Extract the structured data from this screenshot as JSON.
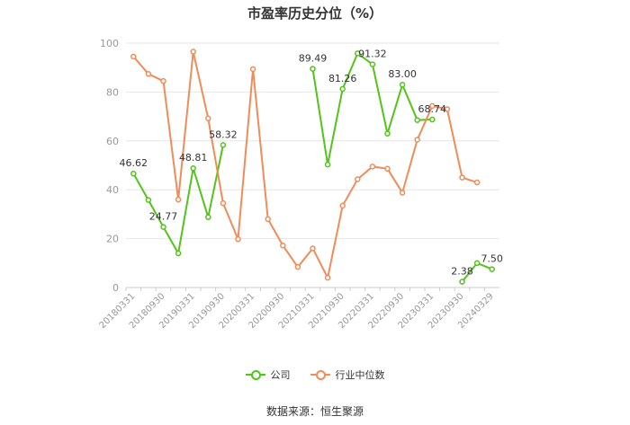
{
  "title": "市盈率历史分位（%）",
  "source": "数据来源：恒生聚源",
  "colors": {
    "company": "#52c41a",
    "industry": "#f08c5a",
    "grid": "#e6e6e6",
    "axis": "#999999"
  },
  "chart_data": {
    "type": "line",
    "ylim": [
      0,
      100
    ],
    "yticks": [
      0,
      20,
      40,
      60,
      80,
      100
    ],
    "grid": true,
    "legend_position": "bottom",
    "x_labels": [
      "20180331",
      "20180930",
      "20190331",
      "20190930",
      "20200331",
      "20200930",
      "20210331",
      "20210930",
      "20220331",
      "20220930",
      "20230331",
      "20230930",
      "20240329"
    ],
    "x": [
      "20180331",
      "20180630",
      "20180930",
      "20181231",
      "20190331",
      "20190630",
      "20190930",
      "20191231",
      "20200331",
      "20200630",
      "20200930",
      "20201231",
      "20210331",
      "20210630",
      "20210930",
      "20211231",
      "20220331",
      "20220630",
      "20220930",
      "20221231",
      "20230331",
      "20230630",
      "20230930",
      "20231231",
      "20240329"
    ],
    "series": [
      {
        "name": "公司",
        "values": [
          46.62,
          35.8,
          24.77,
          14.0,
          48.81,
          28.8,
          58.32,
          null,
          null,
          null,
          null,
          null,
          89.49,
          50.3,
          81.26,
          95.8,
          91.32,
          63.0,
          83.0,
          68.5,
          68.74,
          null,
          2.38,
          10.0,
          7.5
        ],
        "labels": [
          "46.62",
          null,
          "24.77",
          null,
          "48.81",
          null,
          "58.32",
          null,
          null,
          null,
          null,
          null,
          "89.49",
          null,
          "81.26",
          null,
          "91.32",
          null,
          "83.00",
          null,
          "68.74",
          null,
          "2.38",
          null,
          "7.50"
        ]
      },
      {
        "name": "行业中位数",
        "values": [
          94.5,
          87.4,
          84.5,
          36.0,
          96.5,
          69.2,
          34.5,
          19.8,
          89.4,
          28.0,
          17.2,
          8.4,
          16.0,
          4.0,
          33.5,
          44.3,
          49.5,
          48.6,
          38.8,
          60.5,
          74.3,
          73.0,
          45.0,
          43.0,
          null
        ],
        "labels": []
      }
    ]
  }
}
